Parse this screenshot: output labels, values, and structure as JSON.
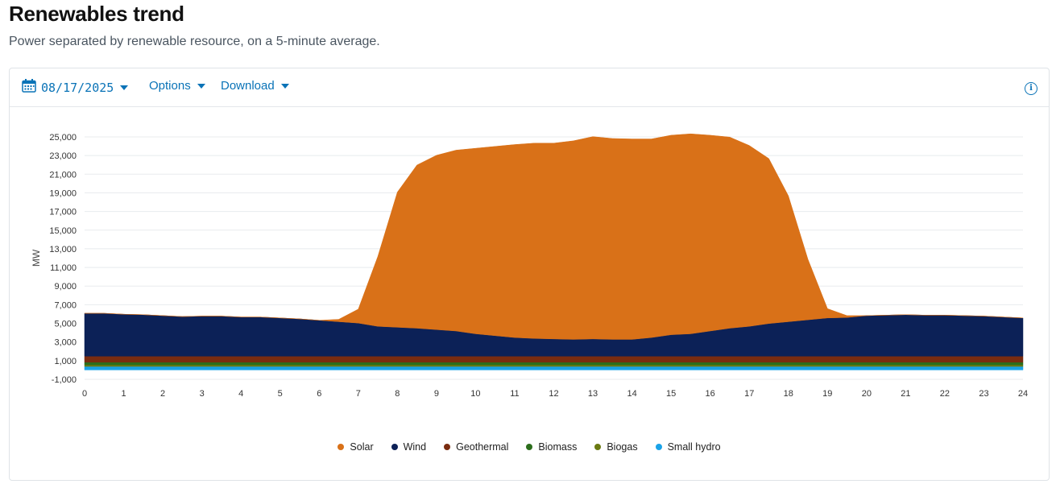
{
  "page": {
    "title": "Renewables trend",
    "subtitle": "Power separated by renewable resource, on a 5-minute average."
  },
  "toolbar": {
    "date": "08/17/2025",
    "options_label": "Options",
    "download_label": "Download",
    "accent_color": "#0a73b7"
  },
  "chart_data": {
    "type": "area",
    "title": "",
    "xlabel": "",
    "ylabel": "MW",
    "xlim": [
      0,
      24
    ],
    "ylim": [
      -1000,
      25000
    ],
    "x_ticks": [
      "0",
      "1",
      "2",
      "3",
      "4",
      "5",
      "6",
      "7",
      "8",
      "9",
      "10",
      "11",
      "12",
      "13",
      "14",
      "15",
      "16",
      "17",
      "18",
      "19",
      "20",
      "21",
      "22",
      "23",
      "24"
    ],
    "y_ticks": [
      "-1,000",
      "1,000",
      "3,000",
      "5,000",
      "7,000",
      "9,000",
      "11,000",
      "13,000",
      "15,000",
      "17,000",
      "19,000",
      "21,000",
      "23,000",
      "25,000"
    ],
    "y_tick_values": [
      -1000,
      1000,
      3000,
      5000,
      7000,
      9000,
      11000,
      13000,
      15000,
      17000,
      19000,
      21000,
      23000,
      25000
    ],
    "grid": true,
    "stacked": true,
    "legend_position": "bottom-center",
    "x": [
      0,
      0.5,
      1,
      1.5,
      2,
      2.5,
      3,
      3.5,
      4,
      4.5,
      5,
      5.5,
      6,
      6.5,
      7,
      7.5,
      8,
      8.5,
      9,
      9.5,
      10,
      10.5,
      11,
      11.5,
      12,
      12.5,
      13,
      13.5,
      14,
      14.5,
      15,
      15.5,
      16,
      16.5,
      17,
      17.5,
      18,
      18.5,
      19,
      19.5,
      20,
      20.5,
      21,
      21.5,
      22,
      22.5,
      23,
      23.5,
      24
    ],
    "series": [
      {
        "name": "Small hydro",
        "color": "#1aa3e8",
        "values": [
          380,
          380,
          380,
          380,
          380,
          380,
          380,
          380,
          380,
          380,
          380,
          380,
          380,
          380,
          380,
          380,
          380,
          380,
          380,
          380,
          380,
          380,
          380,
          380,
          380,
          380,
          380,
          380,
          380,
          380,
          380,
          380,
          380,
          380,
          380,
          380,
          380,
          380,
          380,
          380,
          380,
          380,
          380,
          380,
          380,
          380,
          380,
          380,
          380
        ]
      },
      {
        "name": "Biogas",
        "color": "#6b7a12",
        "values": [
          170,
          170,
          170,
          170,
          170,
          170,
          170,
          170,
          170,
          170,
          170,
          170,
          170,
          170,
          170,
          170,
          170,
          170,
          170,
          170,
          170,
          170,
          170,
          170,
          170,
          170,
          170,
          170,
          170,
          170,
          170,
          170,
          170,
          170,
          170,
          170,
          170,
          170,
          170,
          170,
          170,
          170,
          170,
          170,
          170,
          170,
          170,
          170,
          170
        ]
      },
      {
        "name": "Biomass",
        "color": "#2c6e1c",
        "values": [
          280,
          280,
          280,
          280,
          280,
          280,
          280,
          280,
          280,
          280,
          280,
          280,
          280,
          280,
          280,
          280,
          280,
          280,
          280,
          280,
          280,
          280,
          280,
          280,
          280,
          280,
          280,
          280,
          280,
          280,
          280,
          280,
          280,
          280,
          280,
          280,
          280,
          280,
          280,
          280,
          280,
          280,
          280,
          280,
          280,
          280,
          280,
          280,
          280
        ]
      },
      {
        "name": "Geothermal",
        "color": "#7a2c10",
        "values": [
          650,
          650,
          650,
          650,
          650,
          650,
          650,
          650,
          650,
          650,
          650,
          650,
          650,
          650,
          650,
          650,
          650,
          650,
          650,
          650,
          650,
          650,
          650,
          650,
          650,
          650,
          650,
          650,
          650,
          650,
          650,
          650,
          650,
          650,
          650,
          650,
          650,
          650,
          650,
          650,
          650,
          650,
          650,
          650,
          650,
          650,
          650,
          650,
          650
        ]
      },
      {
        "name": "Wind",
        "color": "#0c2157",
        "values": [
          4600,
          4600,
          4500,
          4450,
          4350,
          4250,
          4300,
          4300,
          4200,
          4200,
          4100,
          4000,
          3850,
          3700,
          3550,
          3200,
          3100,
          3000,
          2850,
          2700,
          2400,
          2200,
          2000,
          1900,
          1850,
          1800,
          1850,
          1800,
          1800,
          2000,
          2300,
          2400,
          2700,
          3000,
          3200,
          3500,
          3700,
          3900,
          4100,
          4150,
          4350,
          4400,
          4450,
          4400,
          4400,
          4350,
          4300,
          4200,
          4100
        ]
      },
      {
        "name": "Solar",
        "color": "#d97118",
        "values": [
          0,
          0,
          0,
          0,
          0,
          0,
          0,
          0,
          0,
          0,
          0,
          0,
          0,
          250,
          1500,
          7500,
          14500,
          17500,
          18700,
          19400,
          19900,
          20300,
          20700,
          20950,
          21000,
          21300,
          21700,
          21550,
          21500,
          21300,
          21400,
          21450,
          21000,
          20500,
          19400,
          17700,
          13500,
          6500,
          1000,
          200,
          0,
          0,
          0,
          0,
          0,
          0,
          0,
          0,
          0
        ]
      }
    ]
  },
  "legend": {
    "items": [
      {
        "label": "Solar",
        "color": "#d97118"
      },
      {
        "label": "Wind",
        "color": "#0c2157"
      },
      {
        "label": "Geothermal",
        "color": "#7a2c10"
      },
      {
        "label": "Biomass",
        "color": "#2c6e1c"
      },
      {
        "label": "Biogas",
        "color": "#6b7a12"
      },
      {
        "label": "Small hydro",
        "color": "#1aa3e8"
      }
    ]
  }
}
